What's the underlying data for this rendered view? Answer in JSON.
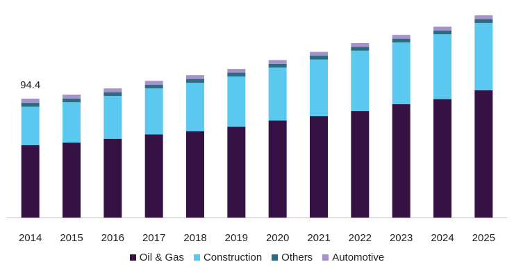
{
  "chart_data": {
    "type": "bar",
    "stacked": true,
    "categories": [
      "2014",
      "2015",
      "2016",
      "2017",
      "2018",
      "2019",
      "2020",
      "2021",
      "2022",
      "2023",
      "2024",
      "2025"
    ],
    "series": [
      {
        "name": "Oil & Gas",
        "color": "#351243",
        "values": [
          57.5,
          59.5,
          62.5,
          66,
          68.5,
          72,
          77,
          80.5,
          84.5,
          90,
          94,
          101
        ]
      },
      {
        "name": "Construction",
        "color": "#5BC8F0",
        "values": [
          30.5,
          32,
          34,
          36.5,
          38.5,
          40,
          42,
          45,
          48,
          49,
          51.5,
          53.5
        ]
      },
      {
        "name": "Others",
        "color": "#2E6B82",
        "values": [
          3,
          3,
          3,
          3,
          3,
          3,
          3,
          3,
          3,
          3,
          3,
          3
        ]
      },
      {
        "name": "Automotive",
        "color": "#A592C9",
        "values": [
          3.4,
          3,
          3,
          3,
          3,
          3,
          3,
          3,
          3,
          3,
          3,
          3
        ]
      }
    ],
    "data_labels": [
      {
        "category": "2014",
        "text": "94.4"
      }
    ],
    "ylim": [
      0,
      160
    ],
    "grid": false,
    "legend_position": "bottom"
  }
}
